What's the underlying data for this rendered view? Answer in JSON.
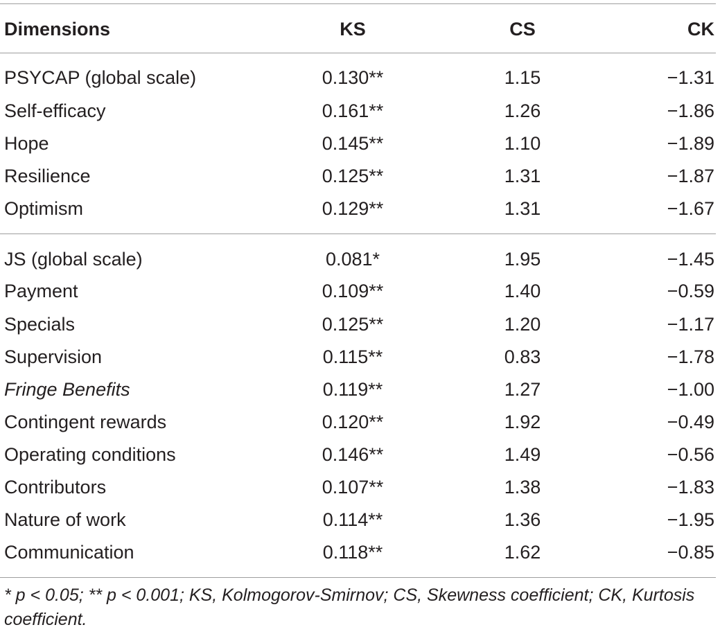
{
  "table": {
    "headers": {
      "dimensions": "Dimensions",
      "ks": "KS",
      "cs": "CS",
      "ck": "CK"
    },
    "group1": [
      {
        "dimension": "PSYCAP (global scale)",
        "ks": "0.130**",
        "cs": "1.15",
        "ck": "−1.31"
      },
      {
        "dimension": "Self-efficacy",
        "ks": "0.161**",
        "cs": "1.26",
        "ck": "−1.86"
      },
      {
        "dimension": "Hope",
        "ks": "0.145**",
        "cs": "1.10",
        "ck": "−1.89"
      },
      {
        "dimension": "Resilience",
        "ks": "0.125**",
        "cs": "1.31",
        "ck": "−1.87"
      },
      {
        "dimension": "Optimism",
        "ks": "0.129**",
        "cs": "1.31",
        "ck": "−1.67"
      }
    ],
    "group2": [
      {
        "dimension": "JS (global scale)",
        "ks": "0.081*",
        "cs": "1.95",
        "ck": "−1.45"
      },
      {
        "dimension": "Payment",
        "ks": "0.109**",
        "cs": "1.40",
        "ck": "−0.59"
      },
      {
        "dimension": "Specials",
        "ks": "0.125**",
        "cs": "1.20",
        "ck": "−1.17"
      },
      {
        "dimension": "Supervision",
        "ks": "0.115**",
        "cs": "0.83",
        "ck": "−1.78"
      },
      {
        "dimension": "Fringe Benefits",
        "ks": "0.119**",
        "cs": "1.27",
        "ck": "−1.00"
      },
      {
        "dimension": "Contingent rewards",
        "ks": "0.120**",
        "cs": "1.92",
        "ck": "−0.49"
      },
      {
        "dimension": "Operating conditions",
        "ks": "0.146**",
        "cs": "1.49",
        "ck": "−0.56"
      },
      {
        "dimension": "Contributors",
        "ks": "0.107**",
        "cs": "1.38",
        "ck": "−1.83"
      },
      {
        "dimension": "Nature of work",
        "ks": "0.114**",
        "cs": "1.36",
        "ck": "−1.95"
      },
      {
        "dimension": "Communication",
        "ks": "0.118**",
        "cs": "1.62",
        "ck": "−0.85"
      }
    ],
    "footnote": "* p < 0.05; ** p < 0.001; KS, Kolmogorov-Smirnov; CS, Skewness coefficient; CK, Kurtosis coefficient."
  }
}
